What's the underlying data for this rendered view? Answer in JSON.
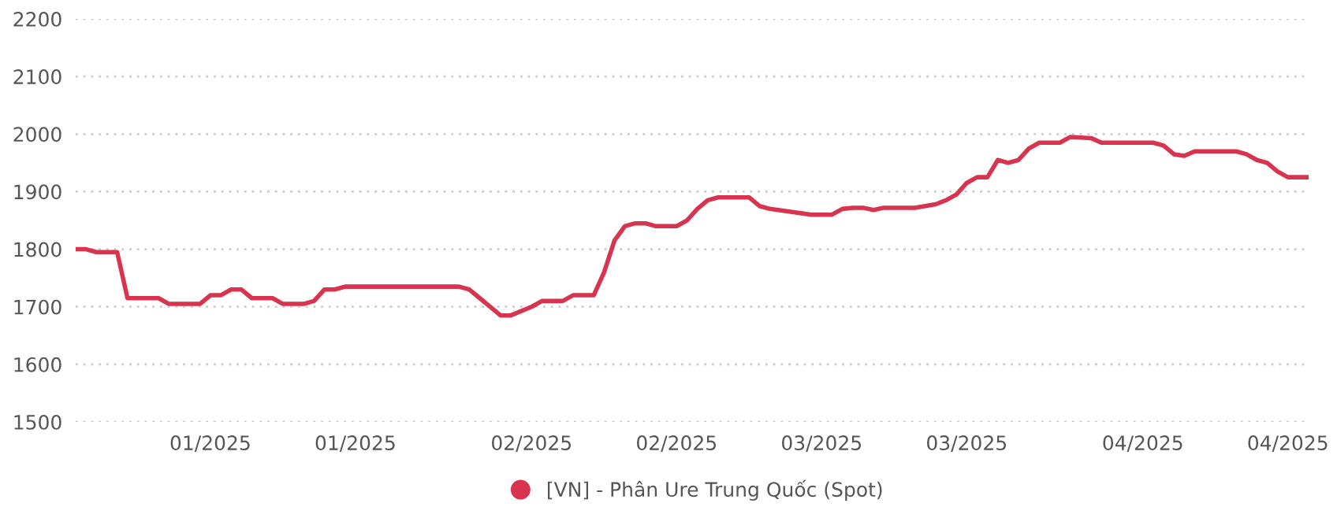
{
  "chart_data": {
    "type": "line",
    "x": [
      "2024-12-19",
      "2024-12-20",
      "2024-12-21",
      "2024-12-23",
      "2024-12-24",
      "2024-12-27",
      "2024-12-28",
      "2024-12-31",
      "2025-01-01",
      "2025-01-02",
      "2025-01-03",
      "2025-01-04",
      "2025-01-05",
      "2025-01-07",
      "2025-01-08",
      "2025-01-10",
      "2025-01-11",
      "2025-01-12",
      "2025-01-13",
      "2025-01-14",
      "2025-01-25",
      "2025-01-26",
      "2025-01-27",
      "2025-01-28",
      "2025-01-29",
      "2025-01-30",
      "2025-02-01",
      "2025-02-02",
      "2025-02-04",
      "2025-02-05",
      "2025-02-07",
      "2025-02-08",
      "2025-02-09",
      "2025-02-10",
      "2025-02-11",
      "2025-02-12",
      "2025-02-13",
      "2025-02-15",
      "2025-02-16",
      "2025-02-17",
      "2025-02-18",
      "2025-02-19",
      "2025-02-22",
      "2025-02-23",
      "2025-02-24",
      "2025-02-26",
      "2025-02-28",
      "2025-03-02",
      "2025-03-03",
      "2025-03-04",
      "2025-03-05",
      "2025-03-06",
      "2025-03-07",
      "2025-03-10",
      "2025-03-12",
      "2025-03-13",
      "2025-03-14",
      "2025-03-15",
      "2025-03-16",
      "2025-03-17",
      "2025-03-18",
      "2025-03-19",
      "2025-03-20",
      "2025-03-21",
      "2025-03-22",
      "2025-03-24",
      "2025-03-25",
      "2025-03-27",
      "2025-03-28",
      "2025-04-02",
      "2025-04-03",
      "2025-04-04",
      "2025-04-05",
      "2025-04-06",
      "2025-04-10",
      "2025-04-11",
      "2025-04-12",
      "2025-04-13",
      "2025-04-14",
      "2025-04-15",
      "2025-04-17"
    ],
    "series": [
      {
        "name": "[VN] - Phân Ure Trung Quốc (Spot)",
        "color": "#d9344f",
        "values": [
          1800,
          1800,
          1795,
          1795,
          1715,
          1715,
          1705,
          1705,
          1720,
          1720,
          1730,
          1730,
          1715,
          1715,
          1705,
          1705,
          1710,
          1730,
          1730,
          1735,
          1735,
          1730,
          1715,
          1700,
          1685,
          1685,
          1700,
          1710,
          1710,
          1720,
          1720,
          1760,
          1815,
          1840,
          1845,
          1845,
          1840,
          1840,
          1850,
          1870,
          1885,
          1890,
          1890,
          1875,
          1870,
          1865,
          1860,
          1860,
          1870,
          1872,
          1872,
          1868,
          1872,
          1872,
          1878,
          1885,
          1895,
          1915,
          1925,
          1925,
          1955,
          1950,
          1955,
          1975,
          1985,
          1985,
          1995,
          1993,
          1985,
          1985,
          1980,
          1965,
          1962,
          1970,
          1970,
          1965,
          1955,
          1950,
          1935,
          1925,
          1925
        ]
      }
    ],
    "xlim": [
      "2024-12-19",
      "2025-04-17"
    ],
    "xticks": [
      {
        "value": "2025-01-01",
        "label": "01/2025"
      },
      {
        "value": "2025-01-15",
        "label": "01/2025"
      },
      {
        "value": "2025-02-01",
        "label": "02/2025"
      },
      {
        "value": "2025-02-15",
        "label": "02/2025"
      },
      {
        "value": "2025-03-01",
        "label": "03/2025"
      },
      {
        "value": "2025-03-15",
        "label": "03/2025"
      },
      {
        "value": "2025-04-01",
        "label": "04/2025"
      },
      {
        "value": "2025-04-15",
        "label": "04/2025"
      }
    ],
    "ylim": [
      1500,
      2200
    ],
    "yticks": [
      1500,
      1600,
      1700,
      1800,
      1900,
      2000,
      2100,
      2200
    ],
    "grid": "y",
    "legend": "bottom",
    "marker": "none",
    "line_style": "solid"
  }
}
